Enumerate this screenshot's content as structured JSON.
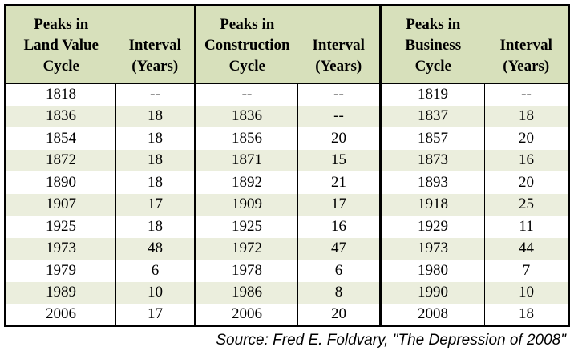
{
  "colors": {
    "header_bg": "#d7e0bb",
    "alt_row_bg": "#ebeedd",
    "border": "#000000",
    "text": "#000000"
  },
  "table": {
    "headers": [
      {
        "lines": [
          "Peaks in",
          "Land Value",
          "Cycle"
        ]
      },
      {
        "lines": [
          "Interval",
          "(Years)"
        ]
      },
      {
        "lines": [
          "Peaks in",
          "Construction",
          "Cycle"
        ]
      },
      {
        "lines": [
          "Interval",
          "(Years)"
        ]
      },
      {
        "lines": [
          "Peaks in",
          "Business",
          "Cycle"
        ]
      },
      {
        "lines": [
          "Interval",
          "(Years)"
        ]
      }
    ]
  },
  "source_note": "Source: Fred E. Foldvary, \"The Depression of 2008\"",
  "chart_data": {
    "type": "table",
    "columns": [
      "Peaks in Land Value Cycle",
      "Interval (Years)",
      "Peaks in Construction Cycle",
      "Interval (Years)",
      "Peaks in Business Cycle",
      "Interval (Years)"
    ],
    "rows": [
      [
        "1818",
        "--",
        "--",
        "--",
        "1819",
        "--"
      ],
      [
        "1836",
        "18",
        "1836",
        "--",
        "1837",
        "18"
      ],
      [
        "1854",
        "18",
        "1856",
        "20",
        "1857",
        "20"
      ],
      [
        "1872",
        "18",
        "1871",
        "15",
        "1873",
        "16"
      ],
      [
        "1890",
        "18",
        "1892",
        "21",
        "1893",
        "20"
      ],
      [
        "1907",
        "17",
        "1909",
        "17",
        "1918",
        "25"
      ],
      [
        "1925",
        "18",
        "1925",
        "16",
        "1929",
        "11"
      ],
      [
        "1973",
        "48",
        "1972",
        "47",
        "1973",
        "44"
      ],
      [
        "1979",
        "6",
        "1978",
        "6",
        "1980",
        "7"
      ],
      [
        "1989",
        "10",
        "1986",
        "8",
        "1990",
        "10"
      ],
      [
        "2006",
        "17",
        "2006",
        "20",
        "2008",
        "18"
      ]
    ],
    "source": "Source: Fred E. Foldvary, \"The Depression of 2008\"",
    "layout": {
      "grid": "column-group-separators",
      "row_striping": "white/light-green alternating"
    }
  }
}
